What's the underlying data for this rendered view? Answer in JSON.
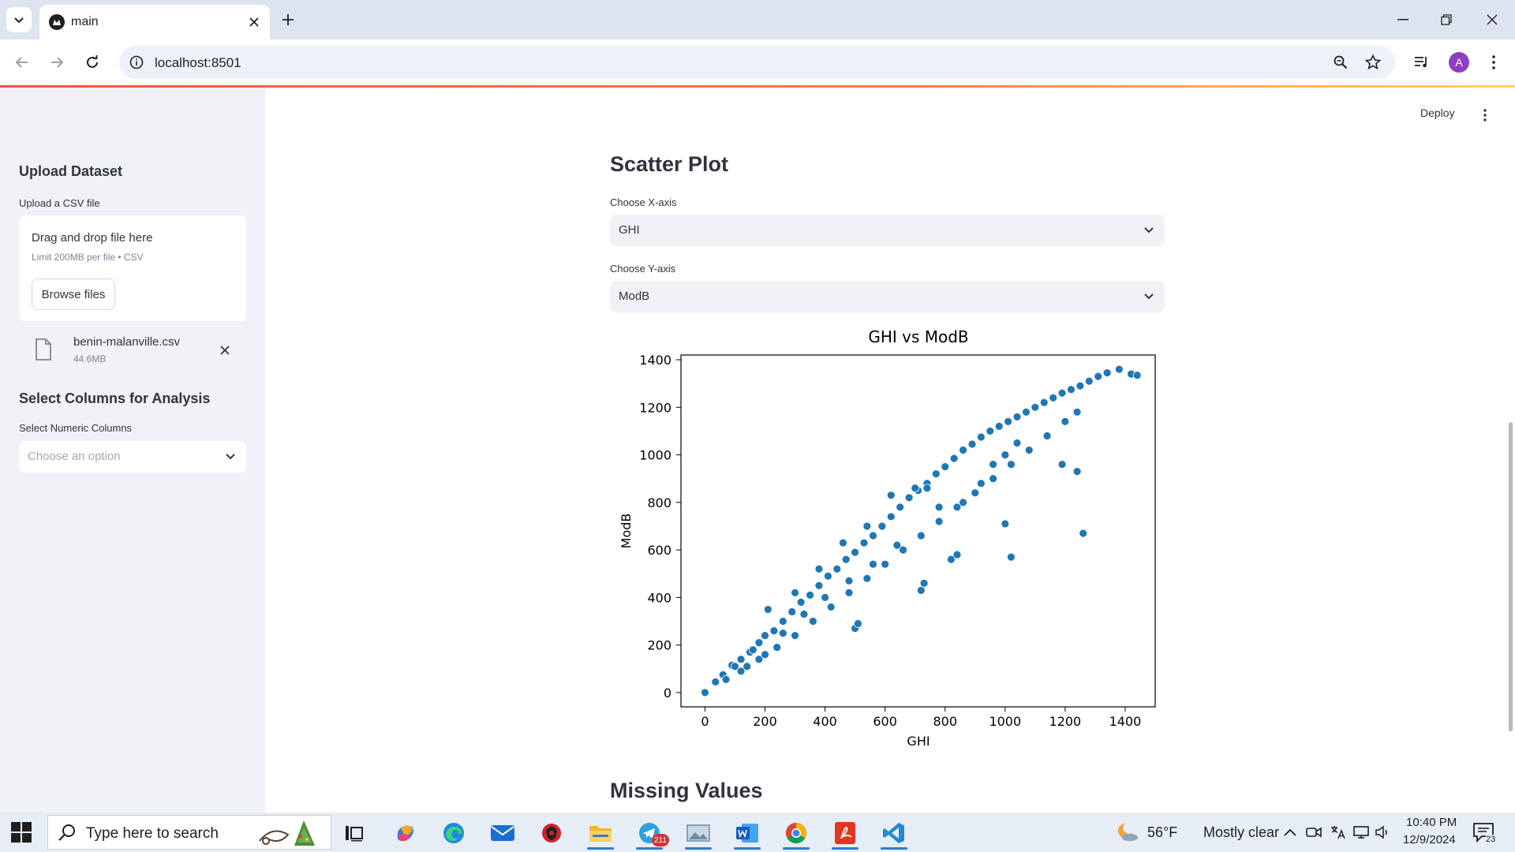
{
  "browser": {
    "tab_title": "main",
    "url": "localhost:8501"
  },
  "sidebar": {
    "upload_heading": "Upload Dataset",
    "upload_label": "Upload a CSV file",
    "dropzone_title": "Drag and drop file here",
    "dropzone_limit": "Limit 200MB per file • CSV",
    "browse_label": "Browse files",
    "file": {
      "name": "benin-malanville.csv",
      "size": "44.6MB"
    },
    "columns_heading": "Select Columns for Analysis",
    "numeric_label": "Select Numeric Columns",
    "numeric_placeholder": "Choose an option"
  },
  "header": {
    "deploy_label": "Deploy"
  },
  "main": {
    "scatter_heading": "Scatter Plot",
    "x_label": "Choose X-axis",
    "x_value": "GHI",
    "y_label": "Choose Y-axis",
    "y_value": "ModB",
    "missing_heading": "Missing Values"
  },
  "chart_data": {
    "type": "scatter",
    "title": "GHI vs ModB",
    "xlabel": "GHI",
    "ylabel": "ModB",
    "xlim": [
      -80,
      1500
    ],
    "ylim": [
      -60,
      1420
    ],
    "xticks": [
      0,
      200,
      400,
      600,
      800,
      1000,
      1200,
      1400
    ],
    "yticks": [
      0,
      200,
      400,
      600,
      800,
      1000,
      1200,
      1400
    ],
    "color": "#1f77b4",
    "points": [
      [
        0,
        0
      ],
      [
        35,
        45
      ],
      [
        60,
        75
      ],
      [
        90,
        115
      ],
      [
        120,
        140
      ],
      [
        150,
        170
      ],
      [
        180,
        210
      ],
      [
        200,
        240
      ],
      [
        210,
        350
      ],
      [
        230,
        260
      ],
      [
        260,
        300
      ],
      [
        290,
        340
      ],
      [
        320,
        380
      ],
      [
        350,
        410
      ],
      [
        380,
        450
      ],
      [
        410,
        490
      ],
      [
        440,
        520
      ],
      [
        470,
        560
      ],
      [
        500,
        590
      ],
      [
        530,
        630
      ],
      [
        560,
        660
      ],
      [
        590,
        700
      ],
      [
        620,
        740
      ],
      [
        650,
        780
      ],
      [
        680,
        820
      ],
      [
        710,
        850
      ],
      [
        740,
        880
      ],
      [
        770,
        920
      ],
      [
        800,
        950
      ],
      [
        830,
        985
      ],
      [
        860,
        1020
      ],
      [
        890,
        1045
      ],
      [
        920,
        1075
      ],
      [
        950,
        1100
      ],
      [
        980,
        1120
      ],
      [
        1010,
        1140
      ],
      [
        1040,
        1160
      ],
      [
        1070,
        1180
      ],
      [
        1100,
        1200
      ],
      [
        1130,
        1220
      ],
      [
        1160,
        1240
      ],
      [
        1190,
        1260
      ],
      [
        1220,
        1275
      ],
      [
        1250,
        1290
      ],
      [
        1280,
        1310
      ],
      [
        1310,
        1330
      ],
      [
        1340,
        1345
      ],
      [
        1380,
        1360
      ],
      [
        1420,
        1340
      ],
      [
        1440,
        1335
      ],
      [
        120,
        90
      ],
      [
        180,
        140
      ],
      [
        240,
        190
      ],
      [
        300,
        240
      ],
      [
        360,
        300
      ],
      [
        420,
        360
      ],
      [
        480,
        420
      ],
      [
        540,
        480
      ],
      [
        600,
        540
      ],
      [
        660,
        600
      ],
      [
        720,
        660
      ],
      [
        780,
        720
      ],
      [
        840,
        780
      ],
      [
        900,
        840
      ],
      [
        960,
        900
      ],
      [
        1020,
        960
      ],
      [
        1080,
        1020
      ],
      [
        1140,
        1080
      ],
      [
        1200,
        1140
      ],
      [
        1240,
        1180
      ],
      [
        300,
        420
      ],
      [
        380,
        520
      ],
      [
        460,
        630
      ],
      [
        540,
        700
      ],
      [
        620,
        830
      ],
      [
        700,
        860
      ],
      [
        740,
        860
      ],
      [
        500,
        270
      ],
      [
        510,
        290
      ],
      [
        720,
        430
      ],
      [
        730,
        460
      ],
      [
        820,
        560
      ],
      [
        840,
        580
      ],
      [
        1000,
        710
      ],
      [
        1020,
        570
      ],
      [
        1240,
        930
      ],
      [
        1190,
        960
      ],
      [
        1260,
        670
      ],
      [
        780,
        780
      ],
      [
        860,
        800
      ],
      [
        920,
        880
      ],
      [
        960,
        960
      ],
      [
        1000,
        1000
      ],
      [
        1040,
        1050
      ],
      [
        640,
        620
      ],
      [
        560,
        540
      ],
      [
        480,
        470
      ],
      [
        400,
        400
      ],
      [
        330,
        330
      ],
      [
        260,
        250
      ],
      [
        160,
        180
      ],
      [
        100,
        110
      ],
      [
        70,
        55
      ],
      [
        140,
        110
      ],
      [
        200,
        160
      ]
    ]
  },
  "taskbar": {
    "search_placeholder": "Type here to search",
    "telegram_badge": "211",
    "weather_temp": "56°F",
    "weather_desc": "Mostly clear",
    "time": "10:40 PM",
    "date": "12/9/2024",
    "notification_count": "23"
  }
}
